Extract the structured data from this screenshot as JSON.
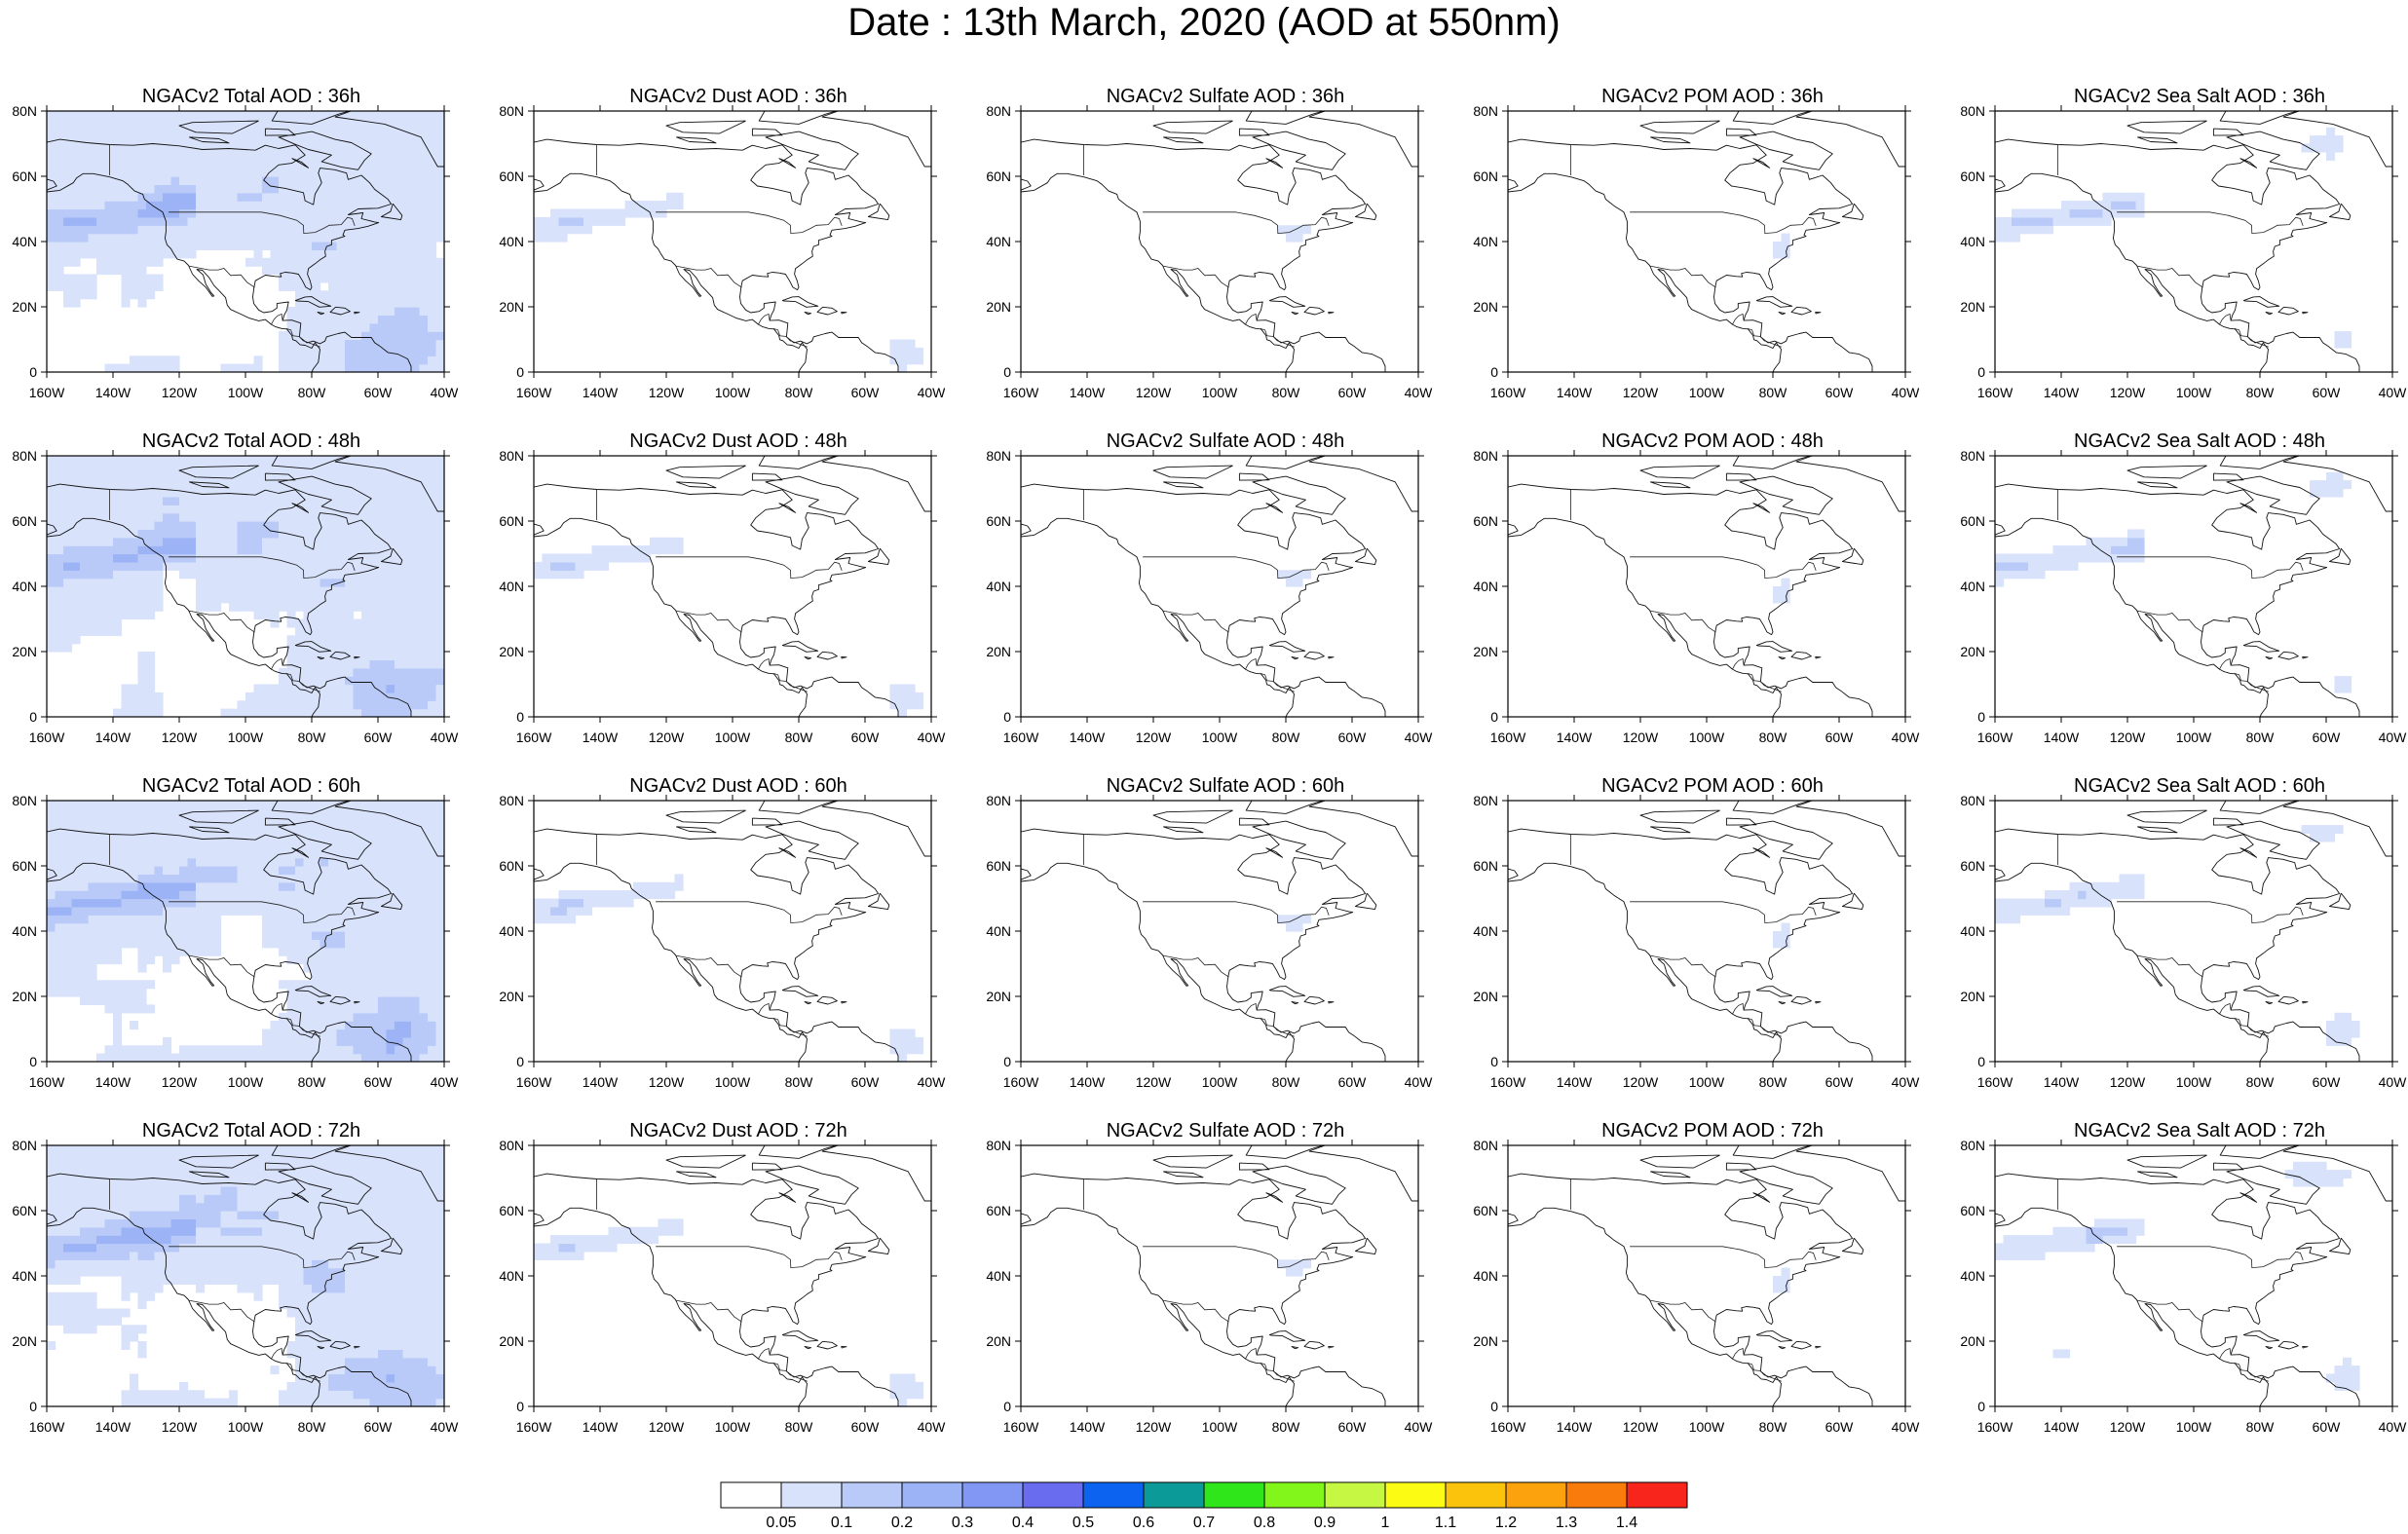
{
  "title": "Date : 13th March, 2020 (AOD at 550nm)",
  "rows": [
    {
      "panels": [
        {
          "title": "NGACv2 Total AOD : 36h",
          "species": "total"
        },
        {
          "title": "NGACv2 Dust AOD : 36h",
          "species": "dust"
        },
        {
          "title": "NGACv2 Sulfate AOD : 36h",
          "species": "sulfate"
        },
        {
          "title": "NGACv2 POM AOD : 36h",
          "species": "pom"
        },
        {
          "title": "NGACv2 Sea Salt AOD : 36h",
          "species": "seasalt"
        }
      ]
    },
    {
      "panels": [
        {
          "title": "NGACv2 Total AOD : 48h",
          "species": "total"
        },
        {
          "title": "NGACv2 Dust AOD : 48h",
          "species": "dust"
        },
        {
          "title": "NGACv2 Sulfate AOD : 48h",
          "species": "sulfate"
        },
        {
          "title": "NGACv2 POM AOD : 48h",
          "species": "pom"
        },
        {
          "title": "NGACv2 Sea Salt AOD : 48h",
          "species": "seasalt"
        }
      ]
    },
    {
      "panels": [
        {
          "title": "NGACv2 Total AOD : 60h",
          "species": "total"
        },
        {
          "title": "NGACv2 Dust AOD : 60h",
          "species": "dust"
        },
        {
          "title": "NGACv2 Sulfate AOD : 60h",
          "species": "sulfate"
        },
        {
          "title": "NGACv2 POM AOD : 60h",
          "species": "pom"
        },
        {
          "title": "NGACv2 Sea Salt AOD : 60h",
          "species": "seasalt"
        }
      ]
    },
    {
      "panels": [
        {
          "title": "NGACv2 Total AOD : 72h",
          "species": "total"
        },
        {
          "title": "NGACv2 Dust AOD : 72h",
          "species": "dust"
        },
        {
          "title": "NGACv2 Sulfate AOD : 72h",
          "species": "sulfate"
        },
        {
          "title": "NGACv2 POM AOD : 72h",
          "species": "pom"
        },
        {
          "title": "NGACv2 Sea Salt  AOD : 72h",
          "species": "seasalt"
        }
      ]
    }
  ],
  "axes": {
    "lon_labels": [
      "160W",
      "140W",
      "120W",
      "100W",
      "80W",
      "60W",
      "40W"
    ],
    "lat_labels": [
      "0",
      "20N",
      "40N",
      "60N",
      "80N"
    ],
    "lon_range": [
      -160,
      -40
    ],
    "lat_range": [
      0,
      80
    ]
  },
  "colorbar": {
    "labels": [
      "0.05",
      "0.1",
      "0.2",
      "0.3",
      "0.4",
      "0.5",
      "0.6",
      "0.7",
      "0.8",
      "0.9",
      "1",
      "1.1",
      "1.2",
      "1.3",
      "1.4"
    ],
    "colors": [
      "#ffffff",
      "#d8e2fb",
      "#b9caf8",
      "#9cb3f6",
      "#8297f3",
      "#6a6cf0",
      "#0b63f0",
      "#0b9a98",
      "#2fe61b",
      "#82f51a",
      "#c6f742",
      "#fbfb14",
      "#fbc30c",
      "#fba20c",
      "#f97b0c",
      "#f7251c"
    ]
  },
  "shading_colors": [
    "#d8e2fb",
    "#b9caf8",
    "#9cb3f6"
  ]
}
